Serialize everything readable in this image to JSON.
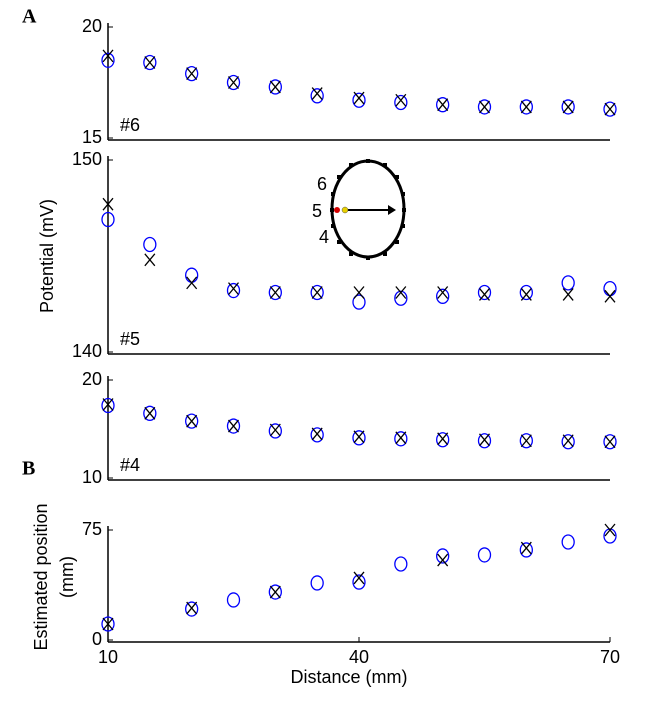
{
  "chart_data": [
    {
      "type": "scatter",
      "panel_label": "A",
      "annotation": "#6",
      "x": [
        10,
        15,
        20,
        25,
        30,
        35,
        40,
        45,
        50,
        55,
        60,
        65,
        70
      ],
      "xlim": [
        10,
        70
      ],
      "ylim": [
        15,
        20
      ],
      "yticks": [
        15,
        20
      ],
      "series": [
        {
          "marker": "ellipse",
          "color": "#0000ff",
          "values": [
            18.5,
            18.4,
            17.9,
            17.5,
            17.3,
            16.9,
            16.7,
            16.6,
            16.5,
            16.4,
            16.4,
            16.4,
            16.3
          ]
        },
        {
          "marker": "cross",
          "color": "#000000",
          "values": [
            18.7,
            18.4,
            17.9,
            17.5,
            17.3,
            17.0,
            16.8,
            16.7,
            16.5,
            16.4,
            16.4,
            16.4,
            16.3
          ]
        }
      ]
    },
    {
      "type": "scatter",
      "annotation": "#5",
      "ylabel": "Potential (mV)",
      "inset_labels": [
        "6",
        "5",
        "4"
      ],
      "x": [
        10,
        15,
        20,
        25,
        30,
        35,
        40,
        45,
        50,
        55,
        60,
        65,
        70
      ],
      "xlim": [
        10,
        70
      ],
      "ylim": [
        140,
        150
      ],
      "yticks": [
        140,
        150
      ],
      "series": [
        {
          "marker": "ellipse",
          "color": "#0000ff",
          "values": [
            146.9,
            145.6,
            144.0,
            143.2,
            143.1,
            143.1,
            142.6,
            142.8,
            142.9,
            143.1,
            143.1,
            143.6,
            143.3
          ]
        },
        {
          "marker": "cross",
          "color": "#000000",
          "values": [
            147.7,
            144.8,
            143.6,
            143.3,
            143.1,
            143.1,
            143.1,
            143.1,
            143.1,
            143.0,
            143.0,
            143.0,
            142.9
          ]
        }
      ]
    },
    {
      "type": "scatter",
      "annotation": "#4",
      "x": [
        10,
        15,
        20,
        25,
        30,
        35,
        40,
        45,
        50,
        55,
        60,
        65,
        70
      ],
      "xlim": [
        10,
        70
      ],
      "ylim": [
        10,
        20
      ],
      "yticks": [
        10,
        20
      ],
      "series": [
        {
          "marker": "ellipse",
          "color": "#0000ff",
          "values": [
            17.4,
            16.6,
            15.8,
            15.3,
            14.8,
            14.4,
            14.1,
            14.0,
            13.9,
            13.8,
            13.8,
            13.7,
            13.7
          ]
        },
        {
          "marker": "cross",
          "color": "#000000",
          "values": [
            17.5,
            16.6,
            15.8,
            15.3,
            14.9,
            14.5,
            14.2,
            14.1,
            14.0,
            13.9,
            13.8,
            13.8,
            13.7
          ]
        }
      ]
    },
    {
      "type": "scatter",
      "panel_label": "B",
      "ylabel": [
        "Estimated position",
        "(mm)"
      ],
      "xlabel": "Distance (mm)",
      "x": [
        10,
        15,
        20,
        25,
        30,
        35,
        40,
        45,
        50,
        55,
        60,
        65,
        70
      ],
      "xlim": [
        10,
        70
      ],
      "xticks": [
        10,
        40,
        70
      ],
      "ylim": [
        0,
        75
      ],
      "yticks": [
        0,
        75
      ],
      "series": [
        {
          "marker": "ellipse",
          "color": "#0000ff",
          "values": [
            10.9,
            null,
            21.1,
            27.3,
            32.7,
            38.9,
            39.5,
            51.8,
            57.3,
            58.0,
            61.4,
            66.8,
            70.9
          ]
        },
        {
          "marker": "cross",
          "color": "#000000",
          "values": [
            10.9,
            null,
            21.8,
            null,
            32.7,
            null,
            42.3,
            null,
            54.5,
            null,
            62.7,
            null,
            75
          ]
        }
      ]
    }
  ]
}
